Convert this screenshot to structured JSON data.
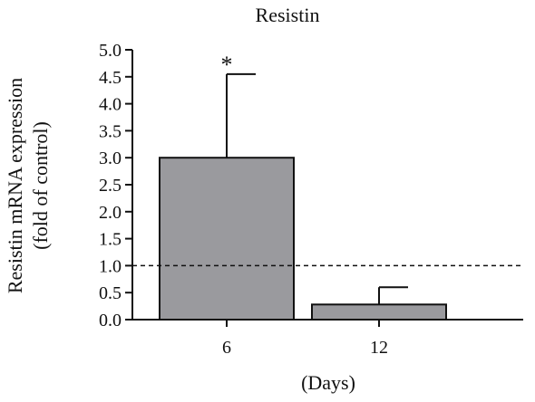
{
  "chart_data": {
    "type": "bar",
    "title": "Resistin",
    "ylabel_line1": "Resistin mRNA expression",
    "ylabel_line2": "(fold of control)",
    "xlabel": "(Days)",
    "categories": [
      "6",
      "12"
    ],
    "values": [
      3.0,
      0.28
    ],
    "error_upper": [
      4.55,
      0.6
    ],
    "significance": [
      "*",
      ""
    ],
    "ylim": [
      0,
      5.0
    ],
    "yticks": [
      0.0,
      0.5,
      1.0,
      1.5,
      2.0,
      2.5,
      3.0,
      3.5,
      4.0,
      4.5,
      5.0
    ],
    "reference_line": 1.0,
    "grid": false,
    "bar_color": "#9a9a9e"
  }
}
